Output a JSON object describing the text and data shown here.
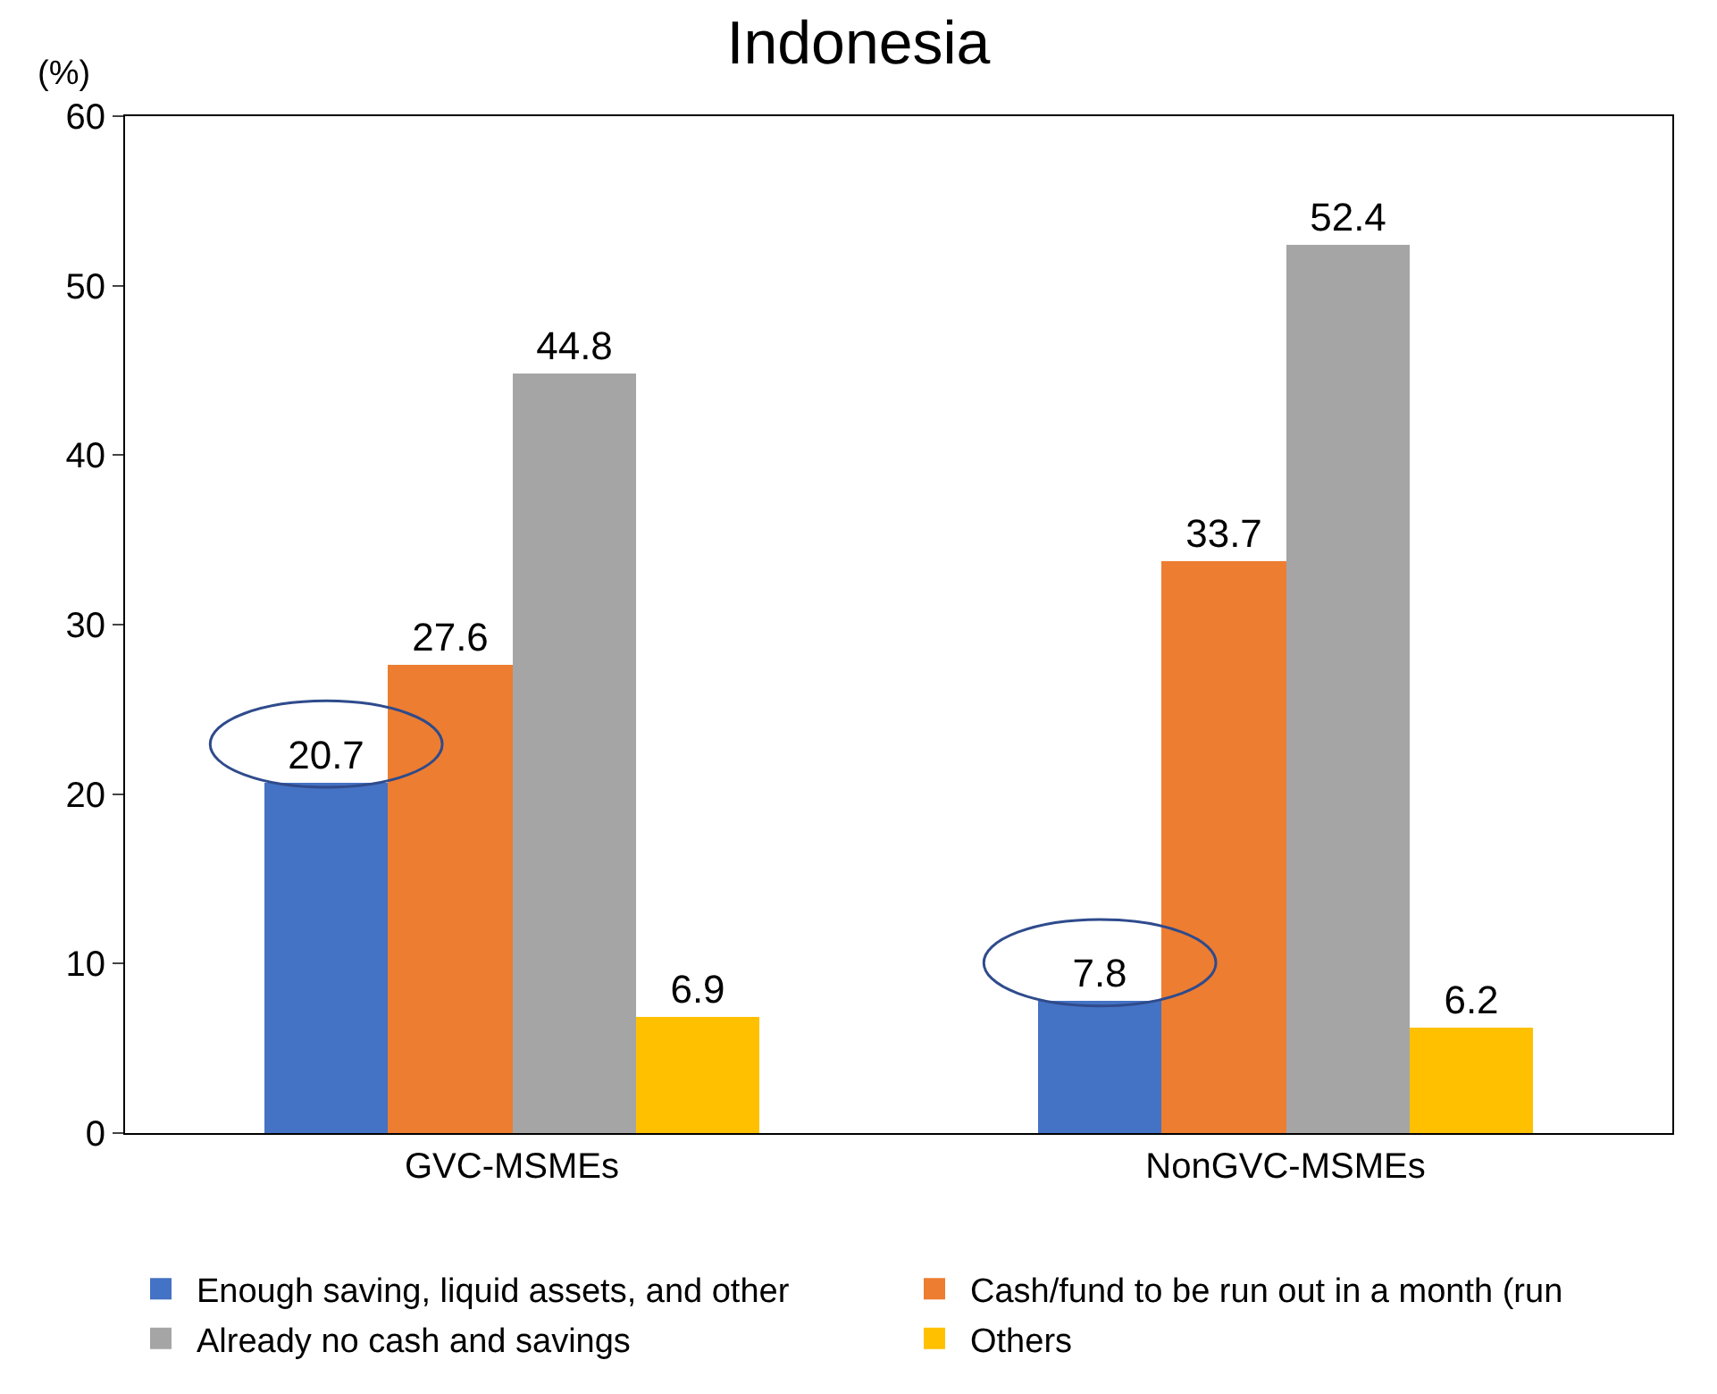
{
  "chart_data": {
    "type": "bar",
    "title": "Indonesia",
    "ylabel": "(%)",
    "categories": [
      "GVC-MSMEs",
      "NonGVC-MSMEs"
    ],
    "series": [
      {
        "name": "Enough saving, liquid assets, and other",
        "color": "#4472c4",
        "values": [
          20.7,
          7.8
        ]
      },
      {
        "name": "Cash/fund to be run out in a month (run",
        "color": "#ed7d31",
        "values": [
          27.6,
          33.7
        ]
      },
      {
        "name": "Already no cash and savings",
        "color": "#a5a5a5",
        "values": [
          44.8,
          52.4
        ]
      },
      {
        "name": "Others",
        "color": "#ffc000",
        "values": [
          6.9,
          6.2
        ]
      }
    ],
    "ylim": [
      0,
      60
    ],
    "yticks": [
      0,
      10,
      20,
      30,
      40,
      50,
      60
    ],
    "legend": "bottom",
    "data_labels": true
  }
}
